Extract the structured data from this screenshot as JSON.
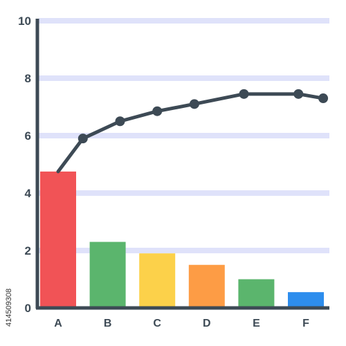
{
  "chart_data": {
    "type": "bar",
    "title": "",
    "xlabel": "",
    "ylabel": "",
    "ylim": [
      0,
      10
    ],
    "yticks": [
      0,
      2,
      4,
      6,
      8,
      10
    ],
    "grid": true,
    "categories": [
      "A",
      "B",
      "C",
      "D",
      "E",
      "F"
    ],
    "series": [
      {
        "type": "bar",
        "values": [
          4.75,
          2.3,
          1.9,
          1.5,
          1.0,
          0.55
        ],
        "colors": [
          "#f15356",
          "#5bb56d",
          "#fcd14a",
          "#fd9c45",
          "#5bb56d",
          "#2d8ded"
        ]
      },
      {
        "type": "line",
        "x": [
          0,
          0.5,
          1.25,
          2.0,
          2.75,
          3.75,
          4.85,
          5.35
        ],
        "values": [
          4.75,
          5.9,
          6.5,
          6.85,
          7.1,
          7.45,
          7.45,
          7.3
        ],
        "color": "#3d4a55"
      }
    ]
  },
  "side_text": "414509308"
}
